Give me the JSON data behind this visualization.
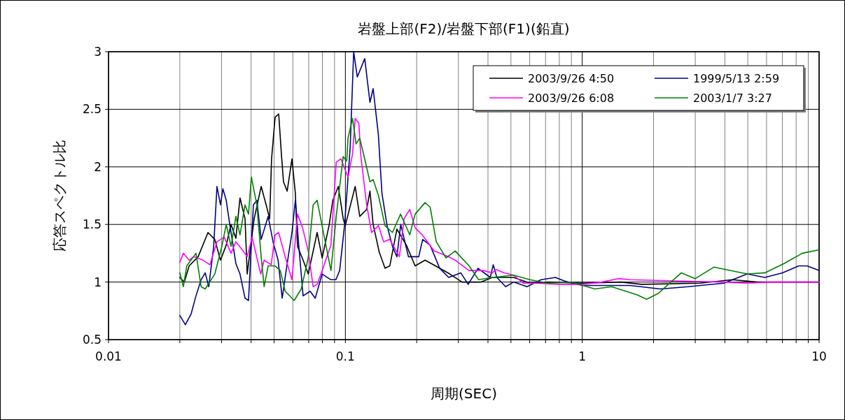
{
  "chart_data": {
    "type": "line",
    "title": "岩盤上部(F2)/岩盤下部(F1)(鉛直)",
    "xlabel": "周期(SEC)",
    "ylabel": "応答スペクトル比",
    "log": "x",
    "grid": true,
    "legend": "top right",
    "xlim": [
      0.01,
      10
    ],
    "ylim": [
      0.5,
      3
    ],
    "xticks": [
      {
        "value": 0.01,
        "label": "0.01"
      },
      {
        "value": 0.02,
        "label": null
      },
      {
        "value": 0.03,
        "label": null
      },
      {
        "value": 0.04,
        "label": null
      },
      {
        "value": 0.05,
        "label": null
      },
      {
        "value": 0.06,
        "label": null
      },
      {
        "value": 0.07,
        "label": null
      },
      {
        "value": 0.08,
        "label": null
      },
      {
        "value": 0.09,
        "label": null
      },
      {
        "value": 0.1,
        "label": "0.1"
      },
      {
        "value": 0.2,
        "label": null
      },
      {
        "value": 0.3,
        "label": null
      },
      {
        "value": 0.4,
        "label": null
      },
      {
        "value": 0.5,
        "label": null
      },
      {
        "value": 0.6,
        "label": null
      },
      {
        "value": 0.7,
        "label": null
      },
      {
        "value": 0.8,
        "label": null
      },
      {
        "value": 0.9,
        "label": null
      },
      1,
      {
        "value": 2,
        "label": null
      },
      {
        "value": 3,
        "label": null
      },
      {
        "value": 4,
        "label": null
      },
      {
        "value": 5,
        "label": null
      },
      {
        "value": 6,
        "label": null
      },
      {
        "value": 7,
        "label": null
      },
      {
        "value": 8,
        "label": null
      },
      {
        "value": 9,
        "label": null
      },
      10
    ],
    "yticks": [
      0.5,
      1,
      1.5,
      2,
      2.5,
      3
    ],
    "series": [
      {
        "name": "2003/9/26 4:50",
        "color": "#000000",
        "x": [
          0.02,
          0.0209,
          0.0219,
          0.0239,
          0.0263,
          0.0281,
          0.0297,
          0.0314,
          0.0329,
          0.0345,
          0.0359,
          0.0377,
          0.0385,
          0.0412,
          0.0441,
          0.0463,
          0.0479,
          0.0488,
          0.0505,
          0.0523,
          0.0537,
          0.0548,
          0.0568,
          0.0595,
          0.0615,
          0.0628,
          0.0663,
          0.0697,
          0.076,
          0.0798,
          0.0855,
          0.0885,
          0.0934,
          0.0979,
          0.0999,
          0.11,
          0.115,
          0.123,
          0.127,
          0.131,
          0.139,
          0.147,
          0.154,
          0.165,
          0.181,
          0.197,
          0.217,
          0.25,
          0.276,
          0.311,
          0.374,
          0.418,
          0.513,
          0.602,
          0.718,
          1.0,
          1.46,
          1.78,
          3.14,
          4.3,
          5.5,
          10
        ],
        "values": [
          1.04,
          1.0,
          1.14,
          1.22,
          1.43,
          1.37,
          1.19,
          1.32,
          1.5,
          1.38,
          1.73,
          1.55,
          1.07,
          1.55,
          1.83,
          1.67,
          1.55,
          2.07,
          2.43,
          2.46,
          2.11,
          1.87,
          1.79,
          2.07,
          1.77,
          1.31,
          1.19,
          1.07,
          1.43,
          1.21,
          1.5,
          1.71,
          1.83,
          1.55,
          1.49,
          1.83,
          1.57,
          1.63,
          1.79,
          1.5,
          1.26,
          1.12,
          1.14,
          1.46,
          1.32,
          1.14,
          1.19,
          1.12,
          1.07,
          1.0,
          1.0,
          1.04,
          1.04,
          0.99,
          1.0,
          0.99,
          1.0,
          0.98,
          0.99,
          1.02,
          1.0,
          1.0
        ]
      },
      {
        "name": "1999/5/13 2:59",
        "color": "#000080",
        "x": [
          0.02,
          0.0211,
          0.0223,
          0.0234,
          0.0246,
          0.0256,
          0.0265,
          0.0278,
          0.0287,
          0.0297,
          0.0304,
          0.0314,
          0.0325,
          0.0345,
          0.0359,
          0.0377,
          0.039,
          0.0409,
          0.0423,
          0.0441,
          0.0472,
          0.0495,
          0.052,
          0.0541,
          0.0568,
          0.0595,
          0.0615,
          0.0636,
          0.0663,
          0.071,
          0.0746,
          0.0798,
          0.0869,
          0.0912,
          0.0946,
          0.0993,
          0.1048,
          0.1084,
          0.1123,
          0.1207,
          0.127,
          0.131,
          0.1378,
          0.1427,
          0.15,
          0.158,
          0.165,
          0.1713,
          0.1846,
          0.204,
          0.212,
          0.228,
          0.25,
          0.273,
          0.307,
          0.33,
          0.363,
          0.409,
          0.421,
          0.436,
          0.475,
          0.513,
          0.585,
          0.67,
          0.77,
          0.84,
          1.0,
          1.59,
          2.14,
          2.8,
          3.96,
          4.97,
          5.9,
          7.0,
          8.2,
          8.9,
          10
        ],
        "values": [
          0.71,
          0.63,
          0.72,
          0.88,
          1.02,
          1.08,
          0.96,
          1.31,
          1.83,
          1.67,
          1.81,
          1.71,
          1.5,
          1.16,
          1.07,
          0.86,
          0.84,
          1.67,
          1.71,
          1.37,
          1.57,
          1.35,
          1.19,
          0.86,
          1.16,
          1.43,
          1.71,
          1.31,
          0.88,
          0.92,
          0.86,
          1.07,
          1.02,
          1.02,
          1.1,
          1.5,
          2.17,
          3.0,
          2.78,
          2.94,
          2.56,
          2.68,
          2.28,
          1.77,
          1.49,
          1.31,
          1.22,
          1.5,
          1.22,
          1.22,
          1.37,
          1.32,
          1.12,
          1.04,
          1.08,
          0.98,
          1.12,
          1.04,
          1.15,
          1.04,
          0.96,
          1.0,
          0.96,
          1.02,
          1.04,
          1.01,
          0.97,
          0.97,
          0.94,
          0.96,
          0.99,
          1.07,
          1.04,
          1.08,
          1.14,
          1.14,
          1.1
        ]
      },
      {
        "name": "2003/9/26 6:08",
        "color": "#ff00ff",
        "x": [
          0.02,
          0.0207,
          0.0219,
          0.0229,
          0.0251,
          0.0268,
          0.0287,
          0.0308,
          0.0329,
          0.0345,
          0.037,
          0.0385,
          0.0404,
          0.0439,
          0.0454,
          0.0486,
          0.0505,
          0.0523,
          0.0557,
          0.0595,
          0.0628,
          0.066,
          0.0697,
          0.0731,
          0.076,
          0.0798,
          0.0869,
          0.0915,
          0.0958,
          0.1026,
          0.1072,
          0.11,
          0.114,
          0.116,
          0.123,
          0.129,
          0.138,
          0.145,
          0.154,
          0.169,
          0.177,
          0.187,
          0.197,
          0.211,
          0.237,
          0.272,
          0.291,
          0.333,
          0.382,
          0.418,
          0.432,
          0.469,
          0.513,
          0.563,
          0.645,
          0.81,
          1.0,
          1.21,
          1.42,
          1.59,
          2.5,
          3.96,
          4.97,
          6.2,
          10
        ],
        "values": [
          1.17,
          1.25,
          1.19,
          1.22,
          1.19,
          1.15,
          1.35,
          1.39,
          1.25,
          1.35,
          1.27,
          1.22,
          1.39,
          1.07,
          1.19,
          1.15,
          1.41,
          1.43,
          1.22,
          1.02,
          1.59,
          1.47,
          1.27,
          0.96,
          0.98,
          1.1,
          1.32,
          2.04,
          2.07,
          1.91,
          2.11,
          2.42,
          2.38,
          2.11,
          1.67,
          1.43,
          1.49,
          1.35,
          1.37,
          1.22,
          1.55,
          1.63,
          1.47,
          1.41,
          1.27,
          1.22,
          1.19,
          1.1,
          1.1,
          1.08,
          1.11,
          1.08,
          1.06,
          0.99,
          0.99,
          0.98,
          0.98,
          1.0,
          1.03,
          1.02,
          1.01,
          1.0,
          0.99,
          1.0,
          1.0
        ]
      },
      {
        "name": "2003/1/7 3:27",
        "color": "#008000",
        "x": [
          0.02,
          0.0207,
          0.0214,
          0.0234,
          0.0246,
          0.0256,
          0.0281,
          0.0301,
          0.0314,
          0.0329,
          0.0345,
          0.0359,
          0.0377,
          0.039,
          0.0401,
          0.0423,
          0.0441,
          0.0454,
          0.0472,
          0.0505,
          0.0531,
          0.0557,
          0.0608,
          0.0651,
          0.0697,
          0.0731,
          0.076,
          0.0815,
          0.0869,
          0.0915,
          0.0979,
          0.1013,
          0.1026,
          0.1072,
          0.111,
          0.115,
          0.12,
          0.127,
          0.131,
          0.138,
          0.147,
          0.158,
          0.171,
          0.187,
          0.197,
          0.217,
          0.228,
          0.242,
          0.266,
          0.291,
          0.333,
          0.365,
          0.418,
          0.513,
          0.602,
          0.718,
          0.9,
          1.13,
          1.33,
          1.7,
          1.87,
          2.09,
          2.62,
          3.0,
          3.6,
          4.97,
          5.9,
          7.1,
          8.5,
          10
        ],
        "values": [
          1.08,
          0.96,
          1.14,
          1.25,
          0.96,
          0.94,
          1.07,
          1.31,
          1.5,
          1.31,
          1.57,
          1.41,
          1.67,
          1.59,
          1.91,
          1.67,
          1.22,
          0.96,
          1.14,
          1.14,
          1.1,
          0.92,
          0.84,
          0.94,
          1.21,
          1.67,
          1.71,
          1.39,
          1.1,
          1.57,
          2.09,
          2.05,
          2.25,
          2.42,
          2.2,
          2.25,
          2.09,
          1.87,
          1.89,
          1.75,
          1.49,
          1.43,
          1.59,
          1.41,
          1.59,
          1.69,
          1.65,
          1.35,
          1.21,
          1.27,
          1.14,
          1.02,
          1.04,
          1.06,
          1.02,
          0.99,
          1.0,
          0.94,
          0.96,
          0.89,
          0.85,
          0.9,
          1.08,
          1.03,
          1.13,
          1.07,
          1.08,
          1.16,
          1.25,
          1.28
        ]
      }
    ]
  }
}
